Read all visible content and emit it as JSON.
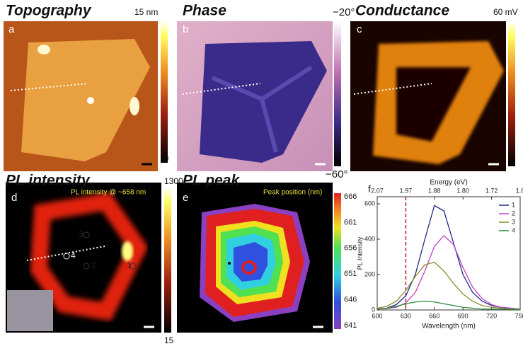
{
  "panels": {
    "a": {
      "letter": "a",
      "title": "Topography",
      "scale_max": "15 nm",
      "scale_min": "0"
    },
    "b": {
      "letter": "b",
      "title": "Phase",
      "scale_max": "−20°",
      "scale_min": "−60°"
    },
    "c": {
      "letter": "c",
      "title": "Conductance",
      "scale_max": "60 mV"
    },
    "d": {
      "letter": "d",
      "title": "PL intensity",
      "scale_max": "1300",
      "scale_min": "15",
      "inset_label": "PL intensity @ ~658 nm",
      "spot_labels": [
        "1",
        "2",
        "3",
        "4"
      ]
    },
    "e": {
      "letter": "e",
      "title": "PL peak",
      "inset_label": "Peak position (nm)",
      "colorbar_ticks": [
        666,
        661,
        656,
        651,
        646,
        641
      ]
    }
  },
  "chart_data": {
    "type": "line",
    "panel_letter": "f",
    "x_label": "Wavelength (nm)",
    "y_label": "PL Intensity",
    "x2_label": "Energy (eV)",
    "x": [
      600,
      610,
      620,
      630,
      640,
      650,
      660,
      670,
      680,
      690,
      700,
      710,
      720,
      730,
      740,
      750
    ],
    "xlim": [
      600,
      750
    ],
    "xticks": [
      600,
      630,
      660,
      690,
      720,
      750
    ],
    "x2ticks": [
      {
        "value": 600,
        "label": "2.07"
      },
      {
        "value": 630,
        "label": "1.97"
      },
      {
        "value": 660,
        "label": "1.88"
      },
      {
        "value": 690,
        "label": "1.80"
      },
      {
        "value": 720,
        "label": "1.72"
      },
      {
        "value": 750,
        "label": "1.6"
      }
    ],
    "ylim": [
      0,
      640
    ],
    "yticks": [
      0,
      200,
      400,
      600
    ],
    "marker_line": {
      "x": 630,
      "color": "#b0202a"
    },
    "series": [
      {
        "name": "1",
        "color": "#1f2a8a",
        "values": [
          5,
          10,
          30,
          80,
          200,
          400,
          590,
          560,
          380,
          200,
          100,
          50,
          25,
          15,
          10,
          5
        ]
      },
      {
        "name": "2",
        "color": "#c040c0",
        "values": [
          5,
          8,
          15,
          40,
          100,
          220,
          360,
          420,
          370,
          240,
          130,
          65,
          30,
          15,
          10,
          5
        ]
      },
      {
        "name": "3",
        "color": "#8a8a30",
        "values": [
          10,
          20,
          50,
          110,
          190,
          255,
          270,
          220,
          150,
          90,
          50,
          25,
          15,
          10,
          5,
          5
        ]
      },
      {
        "name": "4",
        "color": "#2a8a3a",
        "values": [
          5,
          10,
          20,
          35,
          45,
          50,
          45,
          35,
          25,
          15,
          10,
          5,
          5,
          5,
          3,
          2
        ]
      }
    ]
  }
}
